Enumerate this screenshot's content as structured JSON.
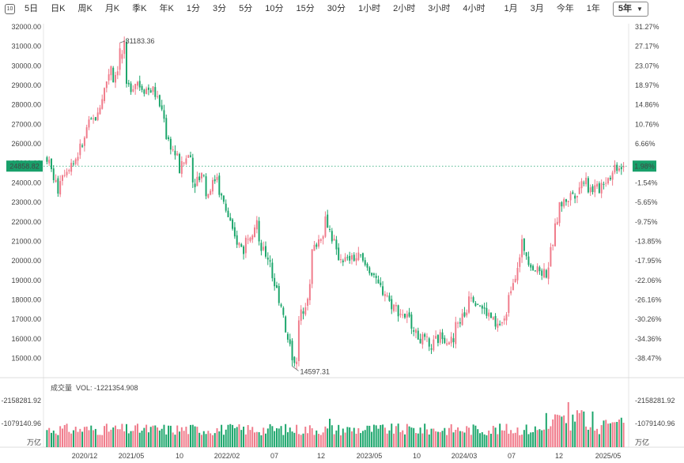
{
  "toolbar": {
    "items": [
      "5日",
      "日K",
      "周K",
      "月K",
      "季K",
      "年K",
      "1分",
      "3分",
      "5分",
      "10分",
      "15分",
      "30分",
      "1小时",
      "2小时",
      "3小时",
      "4小时",
      "1月",
      "3月",
      "今年",
      "1年"
    ],
    "selected_range": "5年",
    "icon": "calendar-icon"
  },
  "price_axis": {
    "left_ticks": [
      "32000.00",
      "31000.00",
      "30000.00",
      "29000.00",
      "28000.00",
      "27000.00",
      "26000.00",
      "25000.00",
      "24000.00",
      "23000.00",
      "22000.00",
      "21000.00",
      "20000.00",
      "19000.00",
      "18000.00",
      "17000.00",
      "16000.00",
      "15000.00"
    ],
    "right_ticks": [
      "31.27%",
      "27.17%",
      "23.07%",
      "18.97%",
      "14.86%",
      "10.76%",
      "6.66%",
      "2.56%",
      "-1.54%",
      "-5.65%",
      "-9.75%",
      "-13.85%",
      "-17.95%",
      "-22.06%",
      "-26.16%",
      "-30.26%",
      "-34.36%",
      "-38.47%"
    ],
    "current_price": "24858.82",
    "current_change": "1.98%",
    "high_label": "31183.36",
    "low_label": "14597.31"
  },
  "volume": {
    "title": "成交量",
    "vol_label": "VOL: -1221354.908",
    "left_ticks": [
      "-2158281.92",
      "-1079140.96"
    ],
    "right_ticks": [
      "-2158281.92",
      "-1079140.96"
    ],
    "unit_left": "万亿",
    "unit_right": "万亿"
  },
  "x_axis": {
    "labels": [
      "2020/12",
      "2021/05",
      "10",
      "2022/02",
      "07",
      "12",
      "2023/05",
      "10",
      "2024/03",
      "07",
      "12",
      "2025/05"
    ]
  },
  "colors": {
    "up": "#f07a8a",
    "down": "#1aa56a",
    "current_tag": "#18a06a"
  },
  "chart_data": {
    "type": "candlestick",
    "ylim": [
      14597.31,
      31183.36
    ],
    "x_labels": [
      "2020/12",
      "2021/05",
      "10",
      "2022/02",
      "07",
      "12",
      "2023/05",
      "10",
      "2024/03",
      "07",
      "12",
      "2025/05"
    ],
    "close_path": [
      [
        25300,
        23300
      ],
      [
        24300,
        25200
      ],
      [
        25000,
        26400
      ],
      [
        26800,
        27600
      ],
      [
        27900,
        30400
      ],
      [
        29200,
        31183
      ],
      [
        28800,
        29300
      ],
      [
        29000,
        28700
      ],
      [
        28900,
        27300
      ],
      [
        26500,
        25100
      ],
      [
        24600,
        25700
      ],
      [
        24000,
        24600
      ],
      [
        23200,
        24500
      ],
      [
        23800,
        21800
      ],
      [
        21400,
        20500
      ],
      [
        21000,
        22100
      ],
      [
        20800,
        20000
      ],
      [
        19500,
        17300
      ],
      [
        16500,
        14597
      ],
      [
        16600,
        18700
      ],
      [
        20300,
        21500
      ],
      [
        22500,
        20600
      ],
      [
        20300,
        19900
      ],
      [
        20100,
        20200
      ],
      [
        19900,
        19200
      ],
      [
        18800,
        18200
      ],
      [
        17900,
        17300
      ],
      [
        17300,
        16600
      ],
      [
        16200,
        15700
      ],
      [
        15400,
        16200
      ],
      [
        16200,
        15800
      ],
      [
        16600,
        17500
      ],
      [
        18500,
        17700
      ],
      [
        17600,
        16900
      ],
      [
        16500,
        17100
      ],
      [
        18200,
        20200
      ],
      [
        21000,
        19600
      ],
      [
        19600,
        19400
      ],
      [
        19300,
        23000
      ],
      [
        22800,
        23500
      ],
      [
        23300,
        24400
      ],
      [
        23700,
        23700
      ],
      [
        23900,
        24500
      ],
      [
        24858,
        24858
      ]
    ],
    "volume_shown": "relative bars, mixed up/down colors, spikes near late 2024"
  }
}
